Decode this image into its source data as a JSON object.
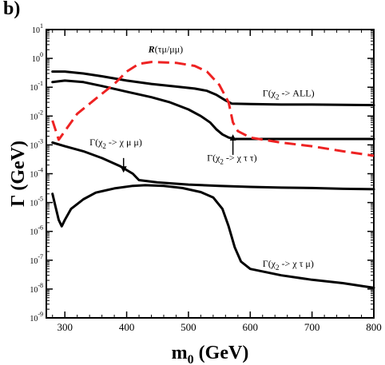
{
  "panel_label": "b)",
  "chart_data": {
    "type": "line",
    "title": "",
    "xlabel": "m",
    "xlabel_sub": "0",
    "xlabel_unit": " (GeV)",
    "ylabel": "Γ (GeV)",
    "xlim": [
      270,
      800
    ],
    "ylim": [
      1e-09,
      10
    ],
    "ylog": true,
    "grid": false,
    "x_ticks": [
      300,
      400,
      500,
      600,
      700,
      800
    ],
    "x_tick_labels": [
      "300",
      "400",
      "500",
      "600",
      "700",
      "800"
    ],
    "y_ticks": [
      1e-09,
      1e-08,
      1e-07,
      1e-06,
      1e-05,
      0.0001,
      0.001,
      0.01,
      0.1,
      1,
      10
    ],
    "y_tick_labels": [
      {
        "base": "10",
        "exp": "-9"
      },
      {
        "base": "10",
        "exp": "-8"
      },
      {
        "base": "10",
        "exp": "-7"
      },
      {
        "base": "10",
        "exp": "-6"
      },
      {
        "base": "10",
        "exp": "-5"
      },
      {
        "base": "10",
        "exp": "-4"
      },
      {
        "base": "10",
        "exp": "-3"
      },
      {
        "base": "10",
        "exp": "-2"
      },
      {
        "base": "10",
        "exp": "-1"
      },
      {
        "base": "10",
        "exp": "0"
      },
      {
        "base": "10",
        "exp": "1"
      }
    ],
    "series": [
      {
        "color": "#000000",
        "style": "solid",
        "x": [
          280,
          300,
          330,
          360,
          400,
          440,
          480,
          510,
          530,
          545,
          560,
          570,
          600,
          650,
          700,
          800
        ],
        "y": [
          0.35,
          0.35,
          0.3,
          0.24,
          0.17,
          0.13,
          0.105,
          0.09,
          0.075,
          0.055,
          0.035,
          0.027,
          0.026,
          0.025,
          0.025,
          0.024
        ]
      },
      {
        "color": "#000000",
        "style": "solid",
        "x": [
          280,
          300,
          330,
          360,
          400,
          440,
          470,
          500,
          520,
          535,
          545,
          555,
          565,
          575,
          600,
          650,
          700,
          800
        ],
        "y": [
          0.15,
          0.17,
          0.15,
          0.11,
          0.07,
          0.045,
          0.03,
          0.017,
          0.01,
          0.006,
          0.0035,
          0.0023,
          0.0018,
          0.0016,
          0.0016,
          0.0016,
          0.0016,
          0.0016
        ]
      },
      {
        "color": "#000000",
        "style": "solid",
        "x": [
          280,
          300,
          330,
          360,
          390,
          410,
          420,
          450,
          500,
          550,
          600,
          650,
          700,
          750,
          800
        ],
        "y": [
          0.0012,
          0.0009,
          0.0006,
          0.00035,
          0.00018,
          0.0001,
          6e-05,
          5e-05,
          4.2e-05,
          3.8e-05,
          3.5e-05,
          3.3e-05,
          3.2e-05,
          3e-05,
          2.9e-05
        ]
      },
      {
        "color": "#000000",
        "style": "solid",
        "x": [
          280,
          285,
          290,
          295,
          300,
          310,
          330,
          350,
          380,
          410,
          430,
          460,
          490,
          520,
          540,
          555,
          565,
          575,
          585,
          600,
          650,
          700,
          750,
          800
        ],
        "y": [
          2e-05,
          7e-06,
          2.5e-06,
          1.5e-06,
          2.5e-06,
          6e-06,
          1.3e-05,
          2.2e-05,
          3.1e-05,
          3.8e-05,
          4e-05,
          3.8e-05,
          3.2e-05,
          2.3e-05,
          1.5e-05,
          6e-06,
          1.5e-06,
          2.8e-07,
          9e-08,
          5e-08,
          3e-08,
          2.1e-08,
          1.6e-08,
          1.1e-08
        ]
      },
      {
        "color": "#ee2222",
        "style": "dashed",
        "x": [
          280,
          290,
          300,
          320,
          350,
          380,
          400,
          420,
          440,
          480,
          510,
          530,
          550,
          565,
          572,
          580,
          600,
          650,
          700,
          750,
          800
        ],
        "y": [
          0.007,
          0.0015,
          0.003,
          0.012,
          0.04,
          0.13,
          0.35,
          0.65,
          0.75,
          0.7,
          0.55,
          0.35,
          0.12,
          0.03,
          0.006,
          0.003,
          0.0018,
          0.0012,
          0.0009,
          0.0006,
          0.00042
        ]
      }
    ],
    "annotations": [
      {
        "name": "ratio",
        "italic_bold": "R",
        "text": "(τμ/μμ)",
        "x": 435,
        "y": 1.6,
        "color": "#000000"
      },
      {
        "name": "all",
        "text": "Γ(χ",
        "sub": "2",
        "text2": " -> ALL)",
        "x": 620,
        "y": 0.048
      },
      {
        "name": "chi-mu-mu",
        "text": "Γ(χ",
        "sub": "2",
        "text2": " -> χ μ μ)",
        "x": 340,
        "y": 0.00095
      },
      {
        "name": "chi-tau-tau",
        "text": "Γ(χ",
        "sub": "2",
        "text2": " -> χ τ τ)",
        "x": 530,
        "y": 0.00028
      },
      {
        "name": "chi-tau-mu",
        "text": "Γ(χ",
        "sub": "2",
        "text2": " -> χ τ μ)",
        "x": 620,
        "y": 6e-08
      }
    ],
    "arrows": [
      {
        "name": "arrow-chi-mu-mu",
        "from": [
          395,
          0.00035
        ],
        "to": [
          395,
          0.00014
        ]
      },
      {
        "name": "arrow-chi-tau-tau",
        "from": [
          572,
          0.00045
        ],
        "to": [
          572,
          0.0018
        ]
      }
    ]
  }
}
